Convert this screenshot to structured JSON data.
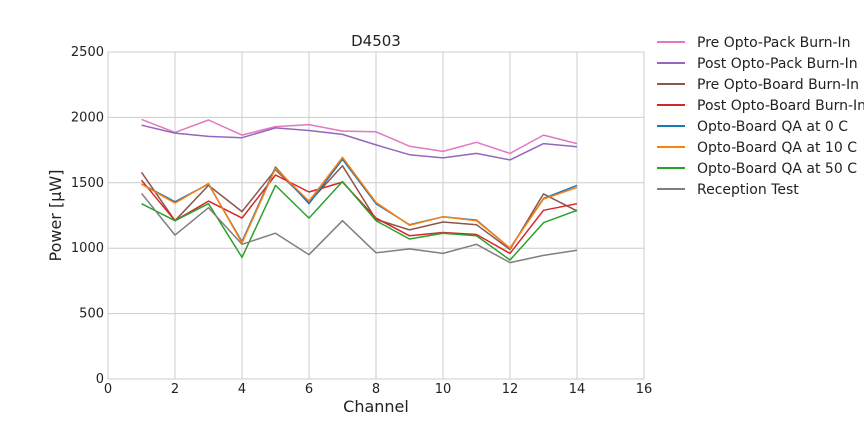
{
  "chart_data": {
    "type": "line",
    "title": "D4503",
    "xlabel": "Channel",
    "ylabel": "Power [μW]",
    "xlim": [
      0,
      16
    ],
    "ylim": [
      0,
      2500
    ],
    "xticks": [
      0,
      2,
      4,
      6,
      8,
      10,
      12,
      14,
      16
    ],
    "yticks": [
      0,
      500,
      1000,
      1500,
      2000,
      2500
    ],
    "grid": true,
    "legend_position": "outside-right",
    "x": [
      1,
      2,
      3,
      4,
      5,
      6,
      7,
      8,
      9,
      10,
      11,
      12,
      13,
      14
    ],
    "series": [
      {
        "name": "Pre Opto-Pack Burn-In",
        "color": "#e377c2",
        "values": [
          1985,
          1885,
          1980,
          1865,
          1930,
          1945,
          1895,
          1890,
          1780,
          1740,
          1810,
          1725,
          1865,
          1800
        ]
      },
      {
        "name": "Post Opto-Pack Burn-In",
        "color": "#9467bd",
        "values": [
          1940,
          1880,
          1855,
          1845,
          1920,
          1900,
          1870,
          1790,
          1715,
          1690,
          1725,
          1675,
          1800,
          1775
        ]
      },
      {
        "name": "Pre Opto-Board Burn-In",
        "color": "#8c564b",
        "values": [
          1580,
          1210,
          1480,
          1280,
          1600,
          1350,
          1630,
          1220,
          1140,
          1200,
          1180,
          990,
          1415,
          1285
        ]
      },
      {
        "name": "Post Opto-Board Burn-In",
        "color": "#d62728",
        "values": [
          1520,
          1210,
          1360,
          1230,
          1560,
          1430,
          1505,
          1230,
          1095,
          1120,
          1105,
          960,
          1290,
          1340
        ]
      },
      {
        "name": "Opto-Board QA at 0 C",
        "color": "#1f77b4",
        "values": [
          1490,
          1355,
          1490,
          1050,
          1620,
          1340,
          1680,
          1340,
          1180,
          1240,
          1215,
          1000,
          1380,
          1480
        ]
      },
      {
        "name": "Opto-Board QA at 10 C",
        "color": "#ff7f0e",
        "values": [
          1490,
          1345,
          1495,
          1040,
          1610,
          1360,
          1695,
          1350,
          1175,
          1240,
          1210,
          1000,
          1375,
          1465
        ]
      },
      {
        "name": "Opto-Board QA at 50 C",
        "color": "#2ca02c",
        "values": [
          1340,
          1210,
          1340,
          930,
          1480,
          1230,
          1510,
          1210,
          1070,
          1115,
          1095,
          910,
          1195,
          1290
        ]
      },
      {
        "name": "Reception Test",
        "color": "#7f7f7f",
        "values": [
          1420,
          1100,
          1310,
          1030,
          1115,
          950,
          1210,
          965,
          995,
          960,
          1030,
          890,
          945,
          985
        ]
      }
    ]
  }
}
